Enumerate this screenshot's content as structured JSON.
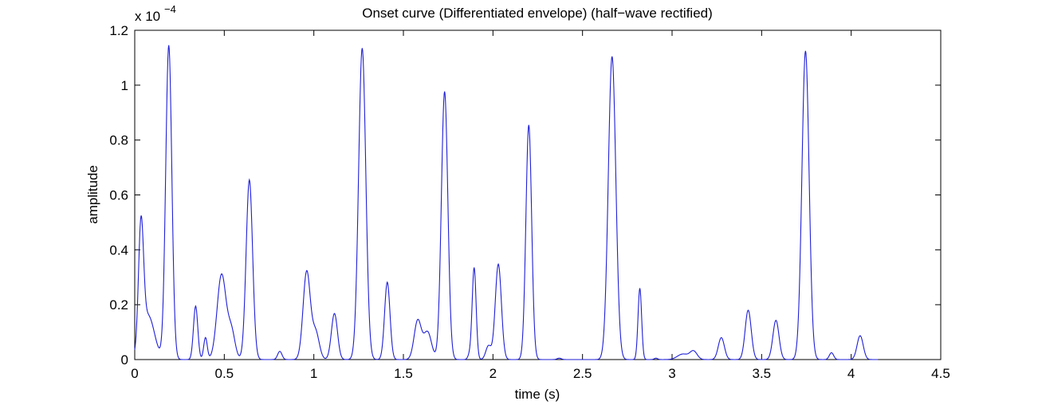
{
  "chart_data": {
    "type": "line",
    "title": "Onset curve (Differentiated envelope) (half−wave rectified)",
    "xlabel": "time (s)",
    "ylabel": "amplitude",
    "y_multiplier_label": "x 10",
    "y_multiplier_exponent": "−4",
    "xlim": [
      0,
      4.5
    ],
    "ylim": [
      0,
      1.2
    ],
    "x_ticks": [
      0,
      0.5,
      1,
      1.5,
      2,
      2.5,
      3,
      3.5,
      4,
      4.5
    ],
    "x_tick_labels": [
      "0",
      "0.5",
      "1",
      "1.5",
      "2",
      "2.5",
      "3",
      "3.5",
      "4",
      "4.5"
    ],
    "y_ticks": [
      0,
      0.2,
      0.4,
      0.6,
      0.8,
      1.0,
      1.2
    ],
    "y_tick_labels": [
      "0",
      "0.2",
      "0.4",
      "0.6",
      "0.8",
      "1",
      "1.2"
    ],
    "grid": false,
    "line_color": "#1f1fd6",
    "series": [
      {
        "peaks": [
          {
            "t": 0.035,
            "a": 0.44,
            "w": 0.014
          },
          {
            "t": 0.075,
            "a": 0.16,
            "w": 0.035
          },
          {
            "t": 0.19,
            "a": 1.145,
            "w": 0.017
          },
          {
            "t": 0.34,
            "a": 0.195,
            "w": 0.012
          },
          {
            "t": 0.395,
            "a": 0.08,
            "w": 0.01
          },
          {
            "t": 0.485,
            "a": 0.31,
            "w": 0.025
          },
          {
            "t": 0.54,
            "a": 0.1,
            "w": 0.02
          },
          {
            "t": 0.64,
            "a": 0.655,
            "w": 0.018
          },
          {
            "t": 0.81,
            "a": 0.03,
            "w": 0.012
          },
          {
            "t": 0.96,
            "a": 0.32,
            "w": 0.02
          },
          {
            "t": 1.01,
            "a": 0.1,
            "w": 0.02
          },
          {
            "t": 1.115,
            "a": 0.168,
            "w": 0.017
          },
          {
            "t": 1.27,
            "a": 1.135,
            "w": 0.02
          },
          {
            "t": 1.41,
            "a": 0.282,
            "w": 0.015
          },
          {
            "t": 1.58,
            "a": 0.142,
            "w": 0.02
          },
          {
            "t": 1.635,
            "a": 0.1,
            "w": 0.022
          },
          {
            "t": 1.73,
            "a": 0.977,
            "w": 0.018
          },
          {
            "t": 1.87,
            "a": 0.017,
            "w": 0.01
          },
          {
            "t": 1.895,
            "a": 0.335,
            "w": 0.011
          },
          {
            "t": 1.975,
            "a": 0.05,
            "w": 0.015
          },
          {
            "t": 2.03,
            "a": 0.348,
            "w": 0.017
          },
          {
            "t": 2.2,
            "a": 0.855,
            "w": 0.016
          },
          {
            "t": 2.37,
            "a": 0.005,
            "w": 0.012
          },
          {
            "t": 2.665,
            "a": 1.105,
            "w": 0.021
          },
          {
            "t": 2.82,
            "a": 0.26,
            "w": 0.01
          },
          {
            "t": 2.91,
            "a": 0.005,
            "w": 0.01
          },
          {
            "t": 3.06,
            "a": 0.02,
            "w": 0.03
          },
          {
            "t": 3.12,
            "a": 0.03,
            "w": 0.02
          },
          {
            "t": 3.275,
            "a": 0.08,
            "w": 0.017
          },
          {
            "t": 3.425,
            "a": 0.18,
            "w": 0.017
          },
          {
            "t": 3.58,
            "a": 0.143,
            "w": 0.017
          },
          {
            "t": 3.745,
            "a": 1.125,
            "w": 0.02
          },
          {
            "t": 3.89,
            "a": 0.025,
            "w": 0.012
          },
          {
            "t": 4.05,
            "a": 0.087,
            "w": 0.017
          }
        ]
      }
    ]
  }
}
